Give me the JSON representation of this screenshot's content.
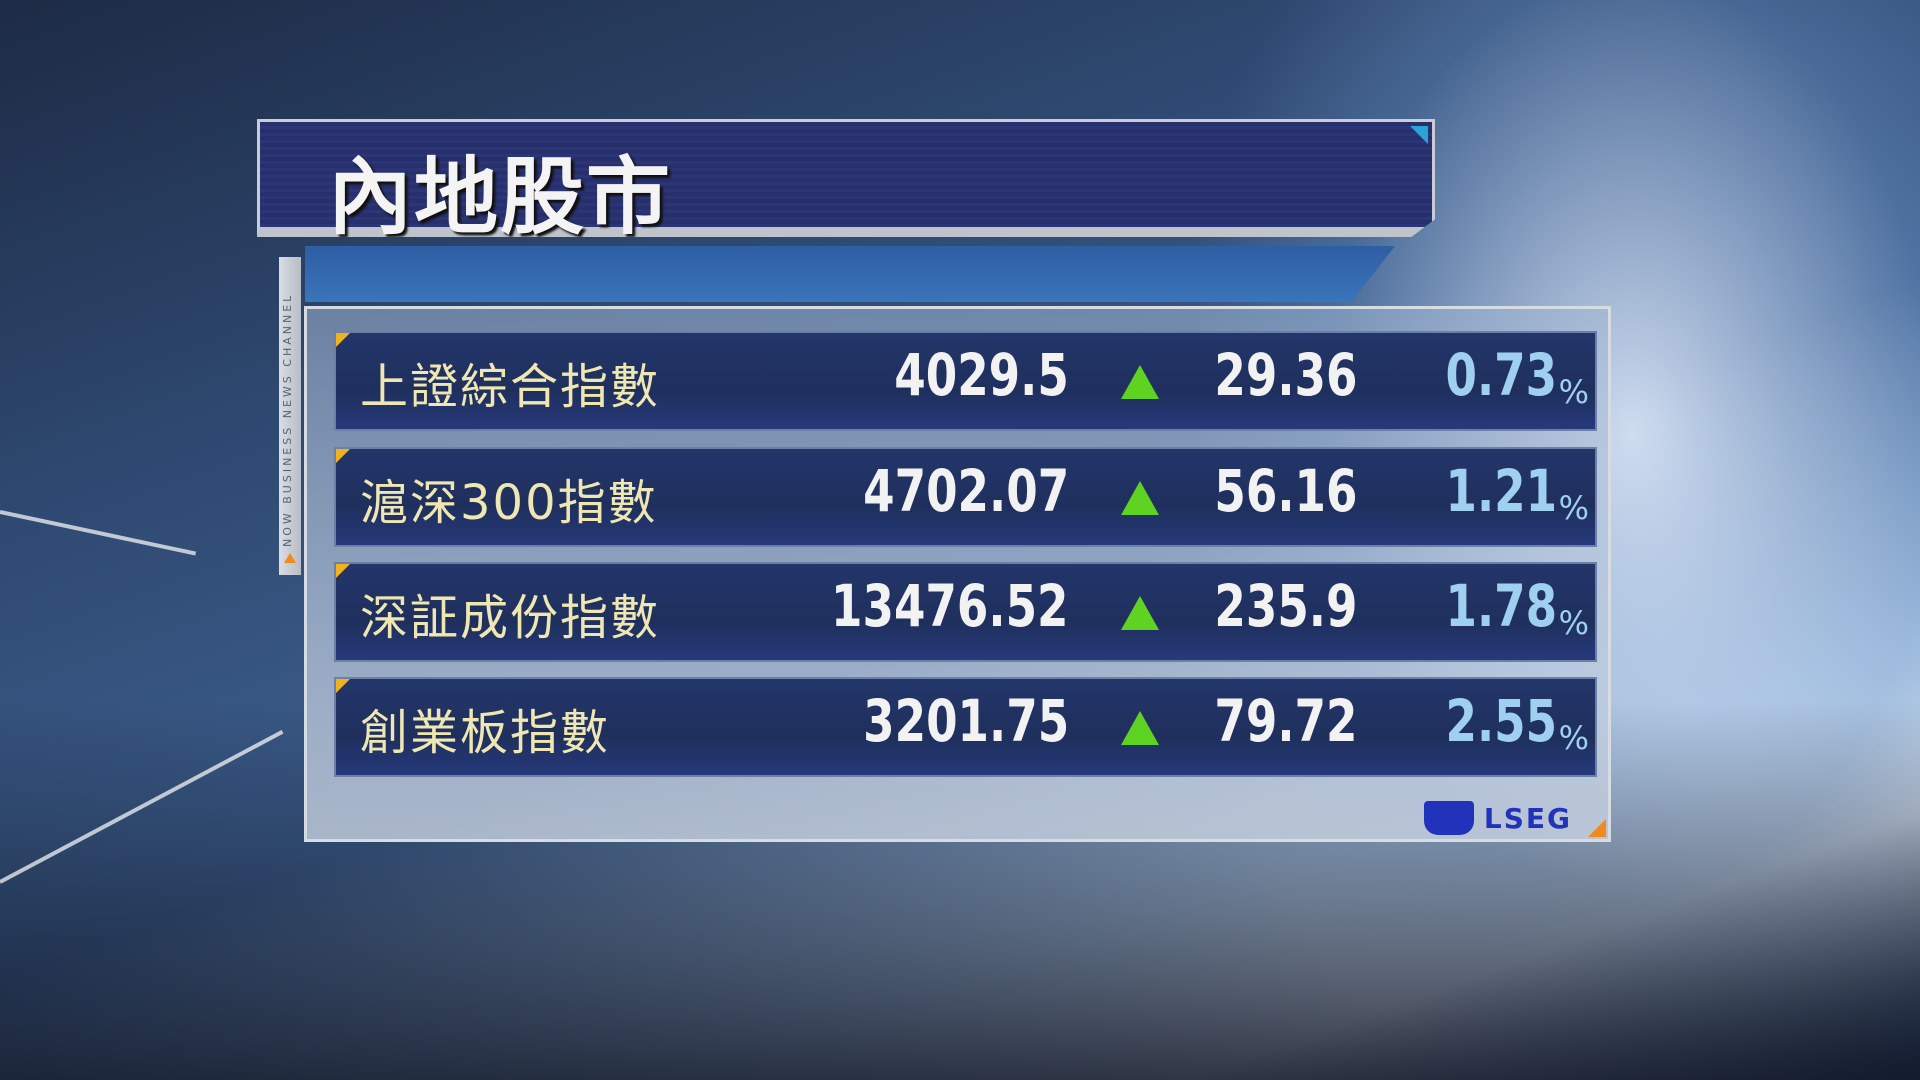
{
  "header": {
    "title": "內地股市"
  },
  "channel_strip": {
    "text": "NOW BUSINESS NEWS CHANNEL"
  },
  "table": {
    "rows": [
      {
        "name": "上證綜合指數",
        "value": "4029.5",
        "direction": "up",
        "change": "29.36",
        "pct": "0.73"
      },
      {
        "name": "滬深300指數",
        "value": "4702.07",
        "direction": "up",
        "change": "56.16",
        "pct": "1.21"
      },
      {
        "name": "深証成份指數",
        "value": "13476.52",
        "direction": "up",
        "change": "235.9",
        "pct": "1.78"
      },
      {
        "name": "創業板指數",
        "value": "3201.75",
        "direction": "up",
        "change": "79.72",
        "pct": "2.55"
      }
    ],
    "pct_sign": "%"
  },
  "source": {
    "logo_text": "LSEG"
  },
  "colors": {
    "header_bg": "#27306a",
    "row_bg": "#1f2f5d",
    "up_arrow": "#5fd321",
    "name_text": "#efe7b2",
    "pct_text": "#9fd0f0",
    "accent_orange": "#f08a1c"
  }
}
